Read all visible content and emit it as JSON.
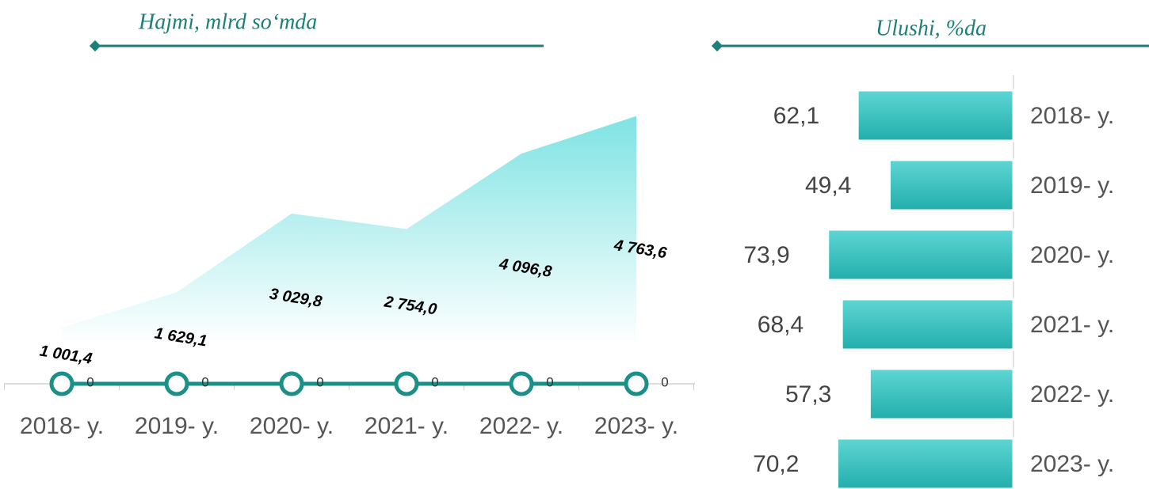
{
  "chart_data": [
    {
      "type": "area",
      "title": "Hajmi, mlrd so‘mda",
      "categories": [
        "2018- y.",
        "2019- y.",
        "2020- y.",
        "2021- y.",
        "2022- y.",
        "2023- y."
      ],
      "series": [
        {
          "type": "area",
          "color": "#7fe3e3",
          "values": [
            1001.4,
            1629.1,
            3029.8,
            2754.0,
            4096.8,
            4763.6
          ],
          "value_labels": [
            "1 001,4",
            "1 629,1",
            "3 029,8",
            "2 754,0",
            "4 096,8",
            "4 763,6"
          ]
        },
        {
          "type": "line",
          "color": "#1b9088",
          "values": [
            0,
            0,
            0,
            0,
            0,
            0
          ]
        }
      ],
      "ylim": [
        0,
        5000
      ]
    },
    {
      "type": "bar",
      "orientation": "horizontal",
      "title": "Ulushi, %da",
      "categories": [
        "2018- y.",
        "2019- y.",
        "2020- y.",
        "2021- y.",
        "2022- y.",
        "2023- y."
      ],
      "values": [
        62.1,
        49.4,
        73.9,
        68.4,
        57.3,
        70.2
      ],
      "value_labels": [
        "62,1",
        "49,4",
        "73,9",
        "68,4",
        "57,3",
        "70,2"
      ],
      "color": "#2dbdbb",
      "xlim": [
        0,
        100
      ]
    }
  ]
}
